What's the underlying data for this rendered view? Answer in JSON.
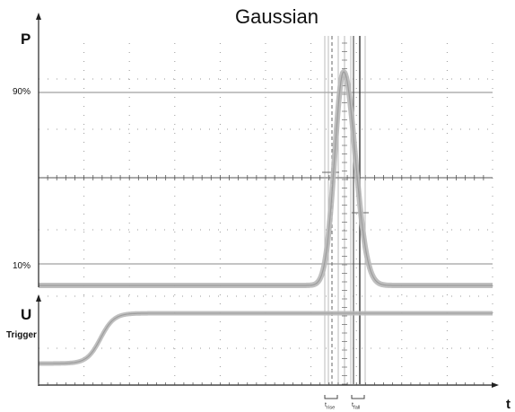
{
  "title": "Gaussian",
  "axes": {
    "power_label": "P",
    "voltage_label": "U",
    "trigger_label": "Trigger",
    "time_label": "t"
  },
  "levels": {
    "upper": "90%",
    "lower": "10%"
  },
  "markers": {
    "rise": "t",
    "rise_sub": "rise",
    "fall": "t",
    "fall_sub": "fall"
  },
  "colors": {
    "trace": "#b8b8b8",
    "grid": "#9a9a9a",
    "axis": "#222222",
    "level_line": "#a0a0a0"
  }
}
